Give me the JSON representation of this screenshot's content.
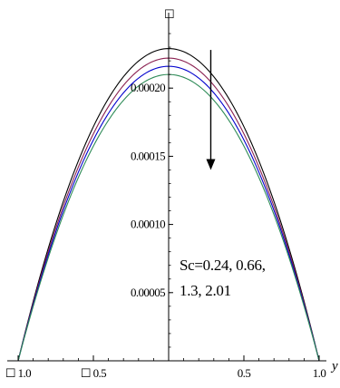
{
  "chart_data": {
    "type": "line",
    "title": "",
    "xlabel": "y",
    "ylabel": "☐",
    "xlim": [
      -1.0,
      1.0
    ],
    "ylim": [
      0,
      0.00025
    ],
    "grid": false,
    "x_tick_labels": [
      {
        "value": -1.0,
        "label": "☐ 1.0"
      },
      {
        "value": -0.5,
        "label": "☐ 0.5"
      },
      {
        "value": 0.5,
        "label": "0.5"
      },
      {
        "value": 1.0,
        "label": "1.0"
      }
    ],
    "y_tick_labels": [
      {
        "value": 5e-05,
        "label": "0.00005"
      },
      {
        "value": 0.0001,
        "label": "0.00010"
      },
      {
        "value": 0.00015,
        "label": "0.00015"
      },
      {
        "value": 0.0002,
        "label": "0.00020"
      }
    ],
    "series": [
      {
        "peak": 0.000229,
        "color": "#000000"
      },
      {
        "peak": 0.000222,
        "color": "#8b2252"
      },
      {
        "peak": 0.000216,
        "color": "#0000cd"
      },
      {
        "peak": 0.00021,
        "color": "#2e8b57"
      }
    ],
    "annotation_lines": [
      "Sc=0.24, 0.66,",
      "1.3, 2.01"
    ],
    "arrow": {
      "x": 0.28,
      "from": 0.000228,
      "to": 0.00014,
      "direction": "down"
    }
  }
}
